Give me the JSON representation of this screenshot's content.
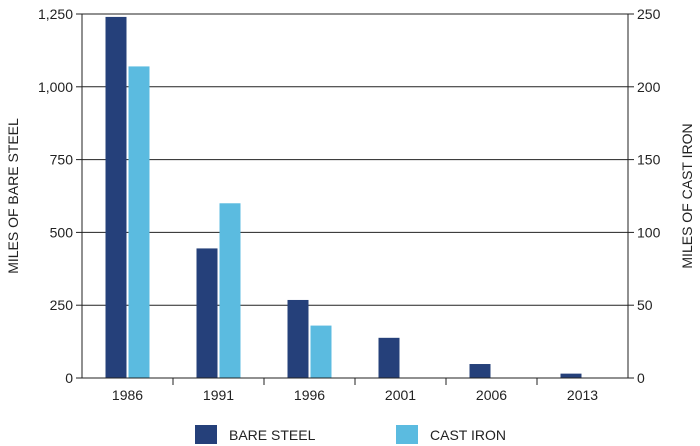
{
  "chart_data": {
    "type": "bar",
    "categories": [
      "1986",
      "1991",
      "1996",
      "2001",
      "2006",
      "2013"
    ],
    "y_left": {
      "label": "MILES OF BARE STEEL",
      "ylim": [
        0,
        1250
      ],
      "ticks": [
        0,
        250,
        500,
        750,
        1000,
        1250
      ],
      "tick_labels": [
        "0",
        "250",
        "500",
        "750",
        "1,000",
        "1,250"
      ]
    },
    "y_right": {
      "label": "MILES OF CAST IRON",
      "ylim": [
        0,
        250
      ],
      "ticks": [
        0,
        50,
        100,
        150,
        200,
        250
      ],
      "tick_labels": [
        "0",
        "50",
        "100",
        "150",
        "200",
        "250"
      ]
    },
    "series": [
      {
        "name": "BARE STEEL",
        "axis": "left",
        "color": "#25407a",
        "values": [
          1240,
          445,
          268,
          138,
          48,
          15
        ]
      },
      {
        "name": "CAST IRON",
        "axis": "right",
        "color": "#5bbbe0",
        "values": [
          214,
          120,
          36,
          0,
          0,
          0
        ]
      }
    ],
    "grid": true,
    "legend_position": "bottom"
  }
}
